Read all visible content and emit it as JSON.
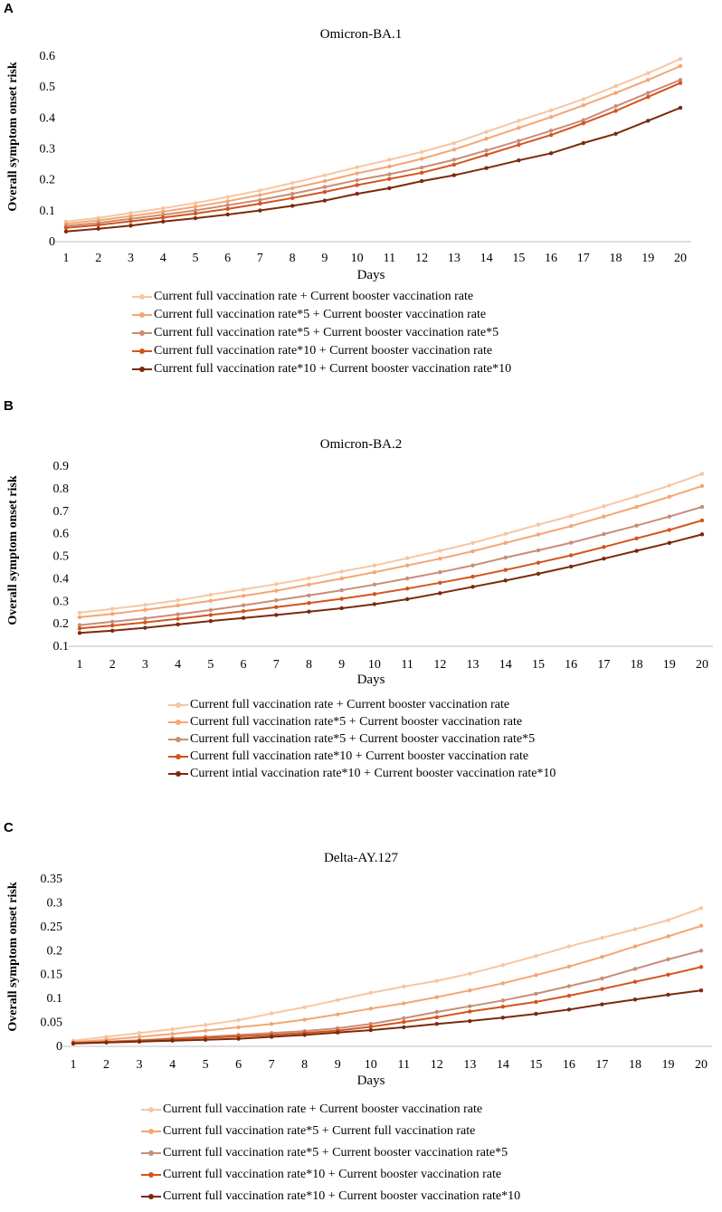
{
  "panels": [
    {
      "letter": "A",
      "chart_data": {
        "type": "line",
        "title": "Omicron-BA.1",
        "xlabel": "Days",
        "ylabel": "Overall symptom onset risk",
        "x": [
          1,
          2,
          3,
          4,
          5,
          6,
          7,
          8,
          9,
          10,
          11,
          12,
          13,
          14,
          15,
          16,
          17,
          18,
          19,
          20
        ],
        "ylim": [
          0,
          0.6
        ],
        "yticks": [
          "0",
          "0.1",
          "0.2",
          "0.3",
          "0.4",
          "0.5",
          "0.6"
        ],
        "ytick_values": [
          0,
          0.1,
          0.2,
          0.3,
          0.4,
          0.5,
          0.6
        ],
        "series": [
          {
            "name": "Current full vaccination rate + Current booster vaccination rate",
            "color": "#f7c6a3",
            "values": [
              0.062,
              0.074,
              0.09,
              0.105,
              0.122,
              0.142,
              0.163,
              0.187,
              0.212,
              0.238,
              0.262,
              0.287,
              0.316,
              0.352,
              0.388,
              0.422,
              0.458,
              0.5,
              0.542,
              0.588
            ]
          },
          {
            "name": "Current full vaccination rate*5 + Current booster vaccination rate",
            "color": "#f4a673",
            "values": [
              0.055,
              0.066,
              0.08,
              0.094,
              0.11,
              0.128,
              0.148,
              0.17,
              0.193,
              0.218,
              0.24,
              0.265,
              0.295,
              0.33,
              0.365,
              0.4,
              0.438,
              0.478,
              0.52,
              0.565
            ]
          },
          {
            "name": "Current full vaccination rate*5 + Current booster vaccination rate*5",
            "color": "#c98d78",
            "values": [
              0.048,
              0.058,
              0.071,
              0.084,
              0.098,
              0.115,
              0.132,
              0.152,
              0.174,
              0.196,
              0.215,
              0.237,
              0.262,
              0.292,
              0.323,
              0.356,
              0.39,
              0.435,
              0.478,
              0.52
            ]
          },
          {
            "name": "Current full vaccination rate*10 + Current booster vaccination rate",
            "color": "#d4541c",
            "values": [
              0.042,
              0.051,
              0.063,
              0.075,
              0.088,
              0.103,
              0.12,
              0.138,
              0.158,
              0.18,
              0.2,
              0.22,
              0.246,
              0.278,
              0.31,
              0.342,
              0.38,
              0.42,
              0.465,
              0.51
            ]
          },
          {
            "name": "Current full vaccination rate*10 + Current booster vaccination rate*10",
            "color": "#7a2a0c",
            "values": [
              0.03,
              0.039,
              0.049,
              0.062,
              0.073,
              0.085,
              0.098,
              0.113,
              0.13,
              0.152,
              0.17,
              0.193,
              0.212,
              0.235,
              0.26,
              0.283,
              0.316,
              0.346,
              0.388,
              0.43
            ]
          }
        ]
      }
    },
    {
      "letter": "B",
      "chart_data": {
        "type": "line",
        "title": "Omicron-BA.2",
        "xlabel": "Days",
        "ylabel": "Overall symptom onset risk",
        "x": [
          1,
          2,
          3,
          4,
          5,
          6,
          7,
          8,
          9,
          10,
          11,
          12,
          13,
          14,
          15,
          16,
          17,
          18,
          19,
          20
        ],
        "ylim": [
          0.1,
          0.9
        ],
        "yticks": [
          "0.1",
          "0.2",
          "0.3",
          "0.4",
          "0.5",
          "0.6",
          "0.7",
          "0.8",
          "0.9"
        ],
        "ytick_values": [
          0.1,
          0.2,
          0.3,
          0.4,
          0.5,
          0.6,
          0.7,
          0.8,
          0.9
        ],
        "series": [
          {
            "name": "Current full vaccination rate + Current booster vaccination rate",
            "color": "#f7c6a3",
            "values": [
              0.245,
              0.262,
              0.28,
              0.3,
              0.325,
              0.348,
              0.372,
              0.398,
              0.428,
              0.455,
              0.487,
              0.52,
              0.555,
              0.595,
              0.636,
              0.675,
              0.718,
              0.762,
              0.81,
              0.862
            ]
          },
          {
            "name": "Current full vaccination rate*5 + Current booster vaccination rate",
            "color": "#f4a673",
            "values": [
              0.225,
              0.24,
              0.258,
              0.277,
              0.298,
              0.32,
              0.343,
              0.37,
              0.397,
              0.425,
              0.455,
              0.485,
              0.518,
              0.555,
              0.592,
              0.63,
              0.672,
              0.715,
              0.76,
              0.808
            ]
          },
          {
            "name": "Current full vaccination rate*5 + Current booster vaccination rate*5",
            "color": "#c98d78",
            "values": [
              0.19,
              0.205,
              0.22,
              0.238,
              0.257,
              0.278,
              0.3,
              0.322,
              0.345,
              0.37,
              0.397,
              0.425,
              0.455,
              0.49,
              0.522,
              0.556,
              0.594,
              0.632,
              0.672,
              0.715
            ]
          },
          {
            "name": "Current full vaccination rate*10 + Current booster vaccination rate",
            "color": "#d4541c",
            "values": [
              0.175,
              0.188,
              0.202,
              0.218,
              0.235,
              0.252,
              0.27,
              0.288,
              0.307,
              0.328,
              0.352,
              0.378,
              0.405,
              0.435,
              0.467,
              0.5,
              0.537,
              0.575,
              0.613,
              0.655
            ]
          },
          {
            "name": "Current intial vaccination rate*10 + Current booster vaccination rate*10",
            "color": "#7a2a0c",
            "values": [
              0.155,
              0.165,
              0.178,
              0.193,
              0.208,
              0.222,
              0.235,
              0.25,
              0.265,
              0.283,
              0.305,
              0.332,
              0.36,
              0.388,
              0.418,
              0.45,
              0.485,
              0.52,
              0.555,
              0.593
            ]
          }
        ]
      }
    },
    {
      "letter": "C",
      "chart_data": {
        "type": "line",
        "title": "Delta-AY.127",
        "xlabel": "Days",
        "ylabel": "Overall symptom onset risk",
        "x": [
          1,
          2,
          3,
          4,
          5,
          6,
          7,
          8,
          9,
          10,
          11,
          12,
          13,
          14,
          15,
          16,
          17,
          18,
          19,
          20
        ],
        "ylim": [
          0,
          0.35
        ],
        "yticks": [
          "0",
          "0.05",
          "0.1",
          "0.15",
          "0.2",
          "0.25",
          "0.3",
          "0.35"
        ],
        "ytick_values": [
          0,
          0.05,
          0.1,
          0.15,
          0.2,
          0.25,
          0.3,
          0.35
        ],
        "series": [
          {
            "name": "Current full vaccination rate + Current booster vaccination rate",
            "color": "#f7c6a3",
            "values": [
              0.01,
              0.018,
              0.026,
              0.034,
              0.043,
              0.053,
              0.067,
              0.08,
              0.095,
              0.11,
              0.123,
              0.135,
              0.15,
              0.168,
              0.187,
              0.207,
              0.225,
              0.243,
              0.262,
              0.287
            ]
          },
          {
            "name": "Current full vaccination rate*5 + Current full vaccination rate",
            "color": "#f4a673",
            "values": [
              0.007,
              0.012,
              0.018,
              0.024,
              0.031,
              0.038,
              0.045,
              0.054,
              0.065,
              0.077,
              0.088,
              0.101,
              0.115,
              0.13,
              0.147,
              0.165,
              0.185,
              0.207,
              0.228,
              0.25
            ]
          },
          {
            "name": "Current full vaccination rate*5 + Current booster vaccination rate*5",
            "color": "#c98d78",
            "values": [
              0.006,
              0.008,
              0.011,
              0.015,
              0.018,
              0.022,
              0.026,
              0.03,
              0.036,
              0.045,
              0.057,
              0.07,
              0.082,
              0.094,
              0.108,
              0.124,
              0.14,
              0.16,
              0.18,
              0.198
            ]
          },
          {
            "name": "Current full vaccination rate*10 + Current booster vaccination rate",
            "color": "#d4541c",
            "values": [
              0.005,
              0.007,
              0.01,
              0.013,
              0.016,
              0.019,
              0.022,
              0.026,
              0.031,
              0.039,
              0.049,
              0.059,
              0.071,
              0.081,
              0.091,
              0.104,
              0.118,
              0.133,
              0.148,
              0.164
            ]
          },
          {
            "name": "Current full vaccination rate*10 + Current booster vaccination rate*10",
            "color": "#7a2a0c",
            "values": [
              0.004,
              0.006,
              0.008,
              0.01,
              0.012,
              0.014,
              0.018,
              0.022,
              0.027,
              0.032,
              0.038,
              0.045,
              0.051,
              0.058,
              0.066,
              0.075,
              0.086,
              0.096,
              0.106,
              0.115
            ]
          }
        ]
      }
    }
  ]
}
